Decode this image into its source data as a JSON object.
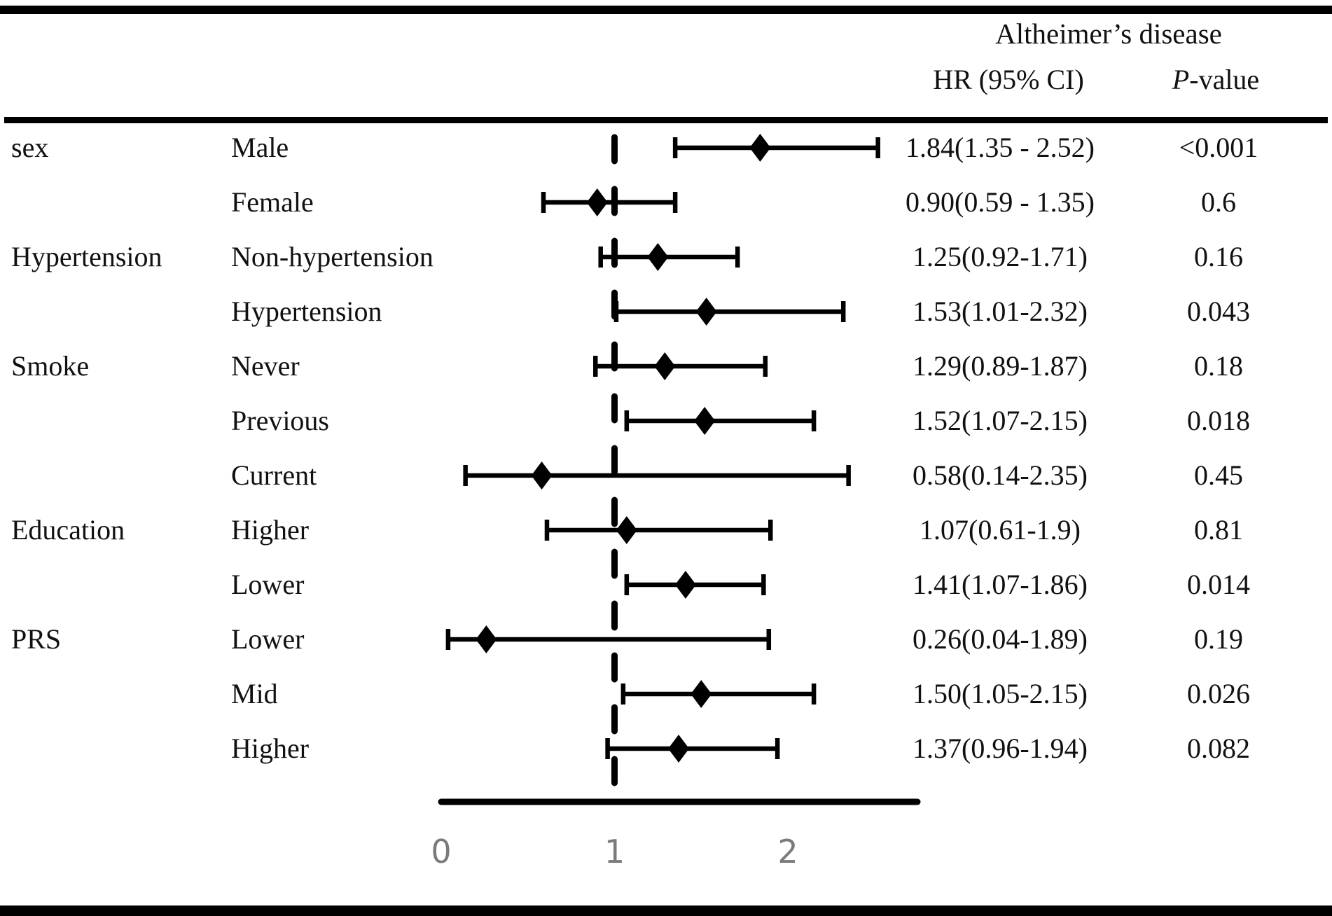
{
  "title": "Altheimer’s disease",
  "columns": {
    "hr_header": "HR (95% CI)",
    "p_header_italic": "P",
    "p_header_rest": "-value"
  },
  "chart_data": {
    "type": "forest",
    "title": "Altheimer’s disease",
    "ref_line": 1,
    "xlim": [
      0,
      2.75
    ],
    "x_ticks": [
      0,
      1,
      2
    ],
    "grid": false,
    "rows": [
      {
        "group": "sex",
        "subgroup": "Male",
        "hr": 1.84,
        "lo": 1.35,
        "hi": 2.52,
        "hr_ci": "1.84(1.35 - 2.52)",
        "p": "<0.001"
      },
      {
        "group": "",
        "subgroup": "Female",
        "hr": 0.9,
        "lo": 0.59,
        "hi": 1.35,
        "hr_ci": "0.90(0.59 - 1.35)",
        "p": "0.6"
      },
      {
        "group": "Hypertension",
        "subgroup": "Non-hypertension",
        "hr": 1.25,
        "lo": 0.92,
        "hi": 1.71,
        "hr_ci": "1.25(0.92-1.71)",
        "p": "0.16"
      },
      {
        "group": "",
        "subgroup": "Hypertension",
        "hr": 1.53,
        "lo": 1.01,
        "hi": 2.32,
        "hr_ci": "1.53(1.01-2.32)",
        "p": "0.043"
      },
      {
        "group": "Smoke",
        "subgroup": "Never",
        "hr": 1.29,
        "lo": 0.89,
        "hi": 1.87,
        "hr_ci": "1.29(0.89-1.87)",
        "p": "0.18"
      },
      {
        "group": "",
        "subgroup": "Previous",
        "hr": 1.52,
        "lo": 1.07,
        "hi": 2.15,
        "hr_ci": "1.52(1.07-2.15)",
        "p": "0.018"
      },
      {
        "group": "",
        "subgroup": "Current",
        "hr": 0.58,
        "lo": 0.14,
        "hi": 2.35,
        "hr_ci": "0.58(0.14-2.35)",
        "p": "0.45"
      },
      {
        "group": "Education",
        "subgroup": "Higher",
        "hr": 1.07,
        "lo": 0.61,
        "hi": 1.9,
        "hr_ci": "1.07(0.61-1.9)",
        "p": "0.81"
      },
      {
        "group": "",
        "subgroup": "Lower",
        "hr": 1.41,
        "lo": 1.07,
        "hi": 1.86,
        "hr_ci": "1.41(1.07-1.86)",
        "p": "0.014"
      },
      {
        "group": "PRS",
        "subgroup": "Lower",
        "hr": 0.26,
        "lo": 0.04,
        "hi": 1.89,
        "hr_ci": "0.26(0.04-1.89)",
        "p": "0.19"
      },
      {
        "group": "",
        "subgroup": "Mid",
        "hr": 1.5,
        "lo": 1.05,
        "hi": 2.15,
        "hr_ci": "1.50(1.05-2.15)",
        "p": "0.026"
      },
      {
        "group": "",
        "subgroup": "Higher",
        "hr": 1.37,
        "lo": 0.96,
        "hi": 1.94,
        "hr_ci": "1.37(0.96-1.94)",
        "p": "0.082"
      }
    ],
    "colors": {
      "marker": "#000000",
      "line": "#000000",
      "axis_tick_label": "#7b7b7b",
      "border": "#000000"
    }
  }
}
